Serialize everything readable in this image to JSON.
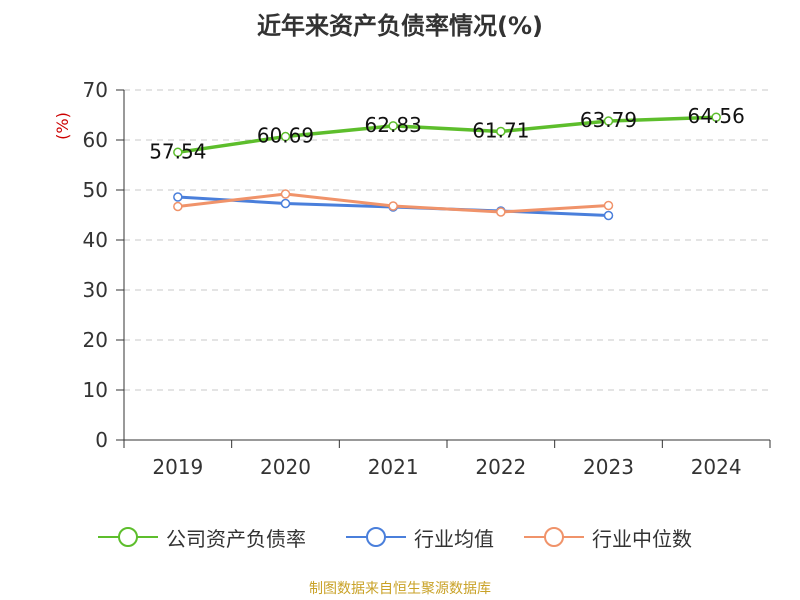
{
  "title": "近年来资产负债率情况(%)",
  "source": "制图数据来自恒生聚源数据库",
  "colors": {
    "source": "#c9a227",
    "unit": "#cc0000",
    "axis": "#333333",
    "grid": "#c8c8c8"
  },
  "chart_data": {
    "type": "line",
    "categories": [
      "2019",
      "2020",
      "2021",
      "2022",
      "2023",
      "2024"
    ],
    "ylabel": "(%)",
    "ylim": [
      0,
      70
    ],
    "yticks": [
      0,
      10,
      20,
      30,
      40,
      50,
      60,
      70
    ],
    "grid": true,
    "legend_position": "bottom",
    "series": [
      {
        "name": "公司资产负债率",
        "color": "#5dbe2c",
        "labels": true,
        "values": [
          57.54,
          60.69,
          62.83,
          61.71,
          63.79,
          64.56
        ]
      },
      {
        "name": "行业均值",
        "color": "#4a7fdb",
        "labels": false,
        "values": [
          48.6,
          47.3,
          46.6,
          45.8,
          44.9,
          null
        ]
      },
      {
        "name": "行业中位数",
        "color": "#f0936a",
        "labels": false,
        "values": [
          46.7,
          49.2,
          46.8,
          45.6,
          46.9,
          null
        ]
      }
    ]
  }
}
